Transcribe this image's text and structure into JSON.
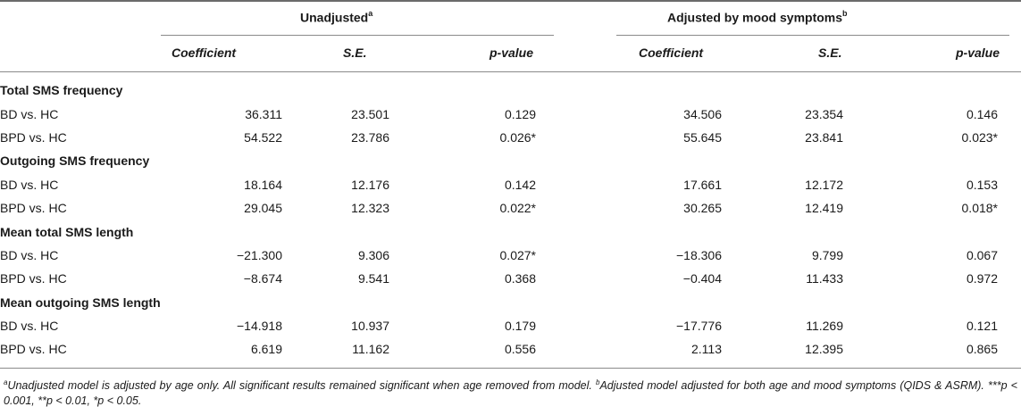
{
  "groups": [
    {
      "title": "Unadjusted",
      "marker": "a"
    },
    {
      "title": "Adjusted by mood symptoms",
      "marker": "b"
    }
  ],
  "columns": [
    "Coefficient",
    "S.E.",
    "p-value",
    "Coefficient",
    "S.E.",
    "p-value"
  ],
  "rows": [
    {
      "type": "section",
      "label": "Total SMS frequency"
    },
    {
      "type": "data",
      "label": "BD vs. HC",
      "values": [
        "36.311",
        "23.501",
        "0.129",
        "34.506",
        "23.354",
        "0.146"
      ]
    },
    {
      "type": "data",
      "label": "BPD vs. HC",
      "values": [
        "54.522",
        "23.786",
        "0.026*",
        "55.645",
        "23.841",
        "0.023*"
      ]
    },
    {
      "type": "section",
      "label": "Outgoing SMS frequency"
    },
    {
      "type": "data",
      "label": "BD vs. HC",
      "values": [
        "18.164",
        "12.176",
        "0.142",
        "17.661",
        "12.172",
        "0.153"
      ]
    },
    {
      "type": "data",
      "label": "BPD vs. HC",
      "values": [
        "29.045",
        "12.323",
        "0.022*",
        "30.265",
        "12.419",
        "0.018*"
      ]
    },
    {
      "type": "section",
      "label": "Mean total SMS length"
    },
    {
      "type": "data",
      "label": "BD vs. HC",
      "values": [
        "−21.300",
        "9.306",
        "0.027*",
        "−18.306",
        "9.799",
        "0.067"
      ]
    },
    {
      "type": "data",
      "label": "BPD vs. HC",
      "values": [
        "−8.674",
        "9.541",
        "0.368",
        "−0.404",
        "11.433",
        "0.972"
      ]
    },
    {
      "type": "section",
      "label": "Mean outgoing SMS length"
    },
    {
      "type": "data",
      "label": "BD vs. HC",
      "values": [
        "−14.918",
        "10.937",
        "0.179",
        "−17.776",
        "11.269",
        "0.121"
      ]
    },
    {
      "type": "data",
      "label": "BPD vs. HC",
      "values": [
        "6.619",
        "11.162",
        "0.556",
        "2.113",
        "12.395",
        "0.865"
      ]
    }
  ],
  "footnote": {
    "a_marker": "a",
    "a_text": "Unadjusted model is adjusted by age only. All significant results remained significant when age removed from model.",
    "b_marker": "b",
    "b_text": "Adjusted model adjusted for both age and mood symptoms (QIDS & ASRM). ***p < 0.001, **p < 0.01, *p < 0.05."
  }
}
